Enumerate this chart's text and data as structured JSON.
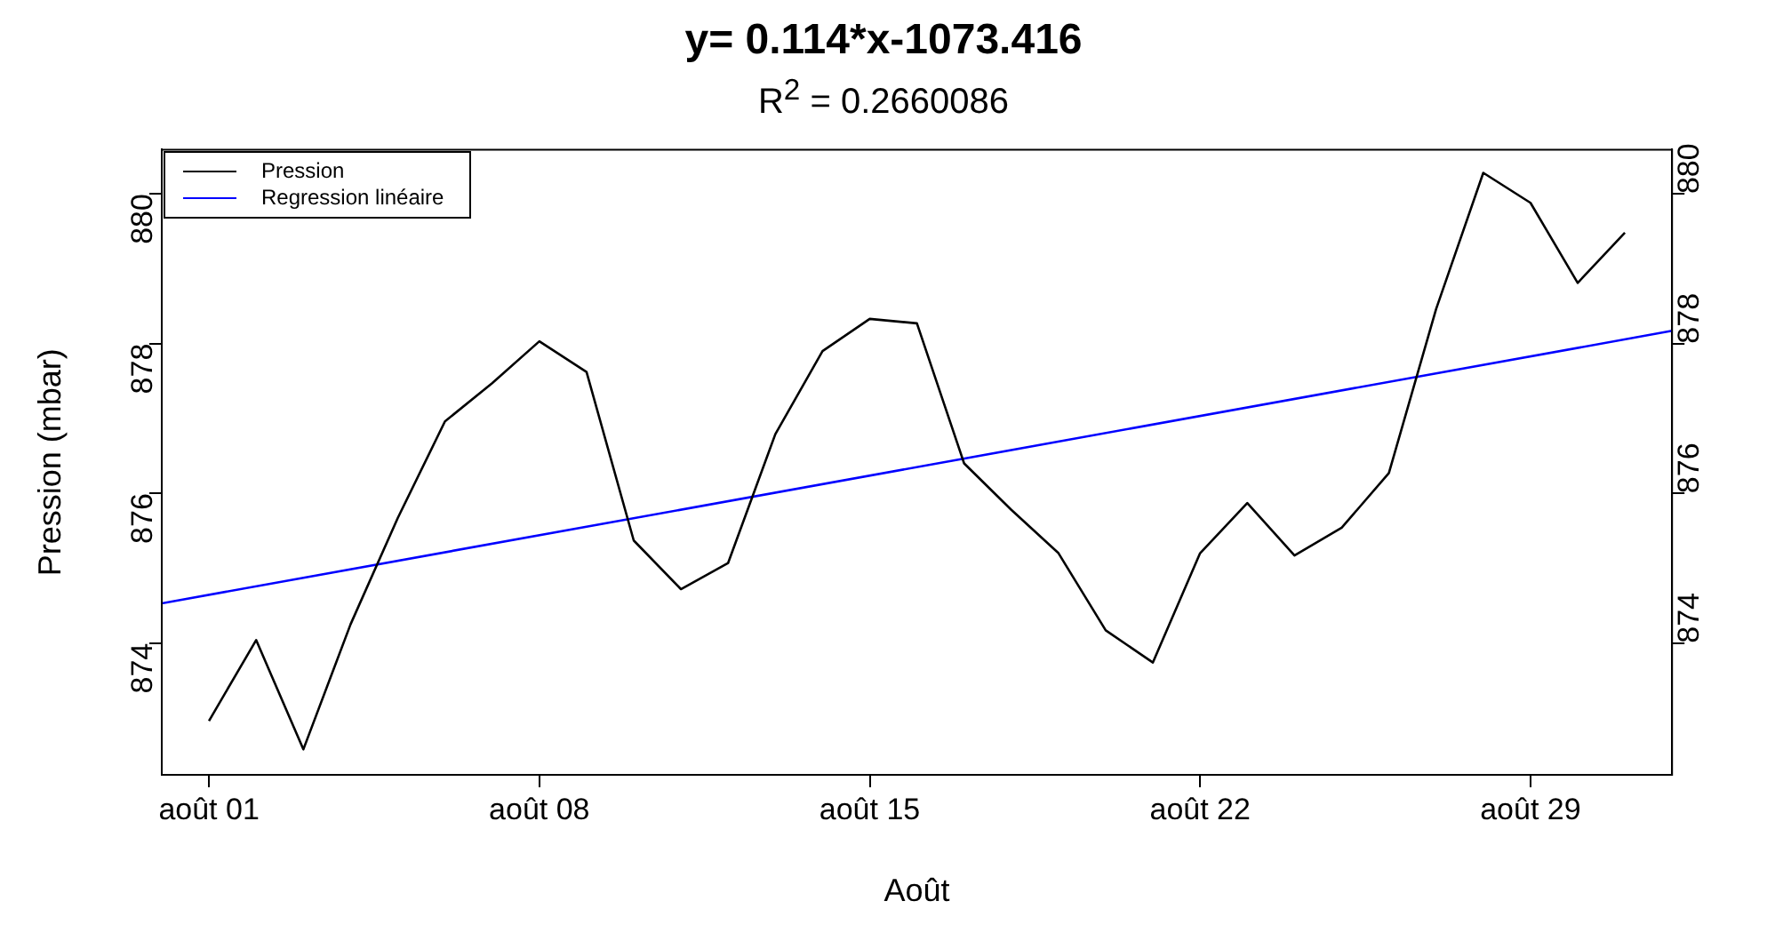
{
  "chart_data": {
    "type": "line",
    "title": "y= 0.114*x-1073.416",
    "subtitle": "R$^{2}$ = 0.2660086",
    "xlabel": "Août",
    "ylabel": "Pression (mbar)",
    "x": [
      "--08-01",
      "--08-02",
      "--08-03",
      "--08-04",
      "--08-05",
      "--08-06",
      "--08-07",
      "--08-08",
      "--08-09",
      "--08-10",
      "--08-11",
      "--08-12",
      "--08-13",
      "--08-14",
      "--08-15",
      "--08-16",
      "--08-17",
      "--08-18",
      "--08-19",
      "--08-20",
      "--08-21",
      "--08-22",
      "--08-23",
      "--08-24",
      "--08-25",
      "--08-26",
      "--08-27",
      "--08-28",
      "--08-29",
      "--08-30",
      "--08-31"
    ],
    "series": [
      {
        "name": "Pression",
        "color": "#000000",
        "values": [
          872.96,
          874.04,
          872.58,
          874.25,
          875.67,
          876.96,
          877.47,
          878.03,
          877.62,
          875.37,
          874.72,
          875.07,
          876.79,
          877.9,
          878.33,
          878.27,
          876.4,
          875.78,
          875.2,
          874.17,
          873.74,
          875.2,
          875.87,
          875.17,
          875.54,
          876.27,
          878.46,
          880.28,
          879.88,
          878.81,
          879.48
        ]
      },
      {
        "name": "Regression linéaire",
        "type": "line",
        "color": "#0000ff",
        "x": [
          "--07-31",
          "--09-01"
        ],
        "values": [
          874.53,
          878.17
        ]
      }
    ],
    "xlim": [
      "--07-31",
      "--09-01"
    ],
    "xticks": [
      {
        "value": "--08-01",
        "label": "août 01"
      },
      {
        "value": "--08-08",
        "label": "août 08"
      },
      {
        "value": "--08-15",
        "label": "août 15"
      },
      {
        "value": "--08-22",
        "label": "août 22"
      },
      {
        "value": "--08-29",
        "label": "août 29"
      }
    ],
    "ylim": [
      872.24,
      880.59
    ],
    "yticks": [
      874,
      876,
      878,
      880
    ],
    "y2lim": [
      872.24,
      880.59
    ],
    "y2ticks": [
      874,
      876,
      878,
      880
    ],
    "legend": "top left",
    "marker": "none",
    "line_style": "solid"
  }
}
